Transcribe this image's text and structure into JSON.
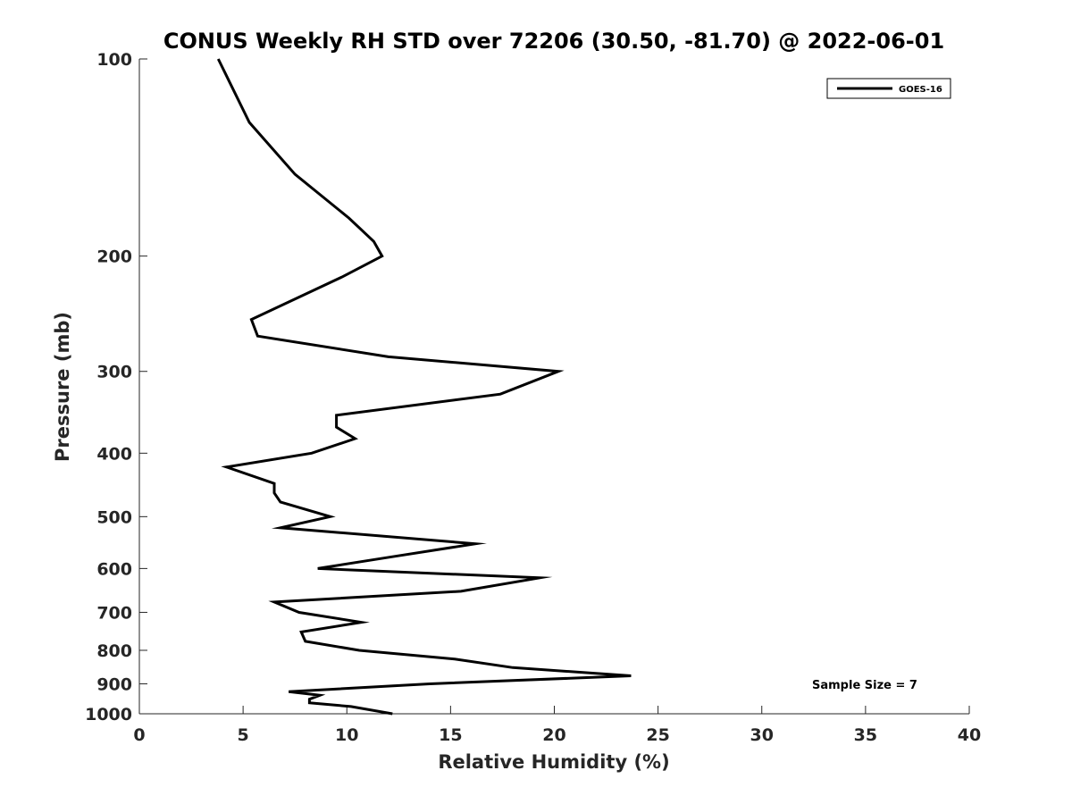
{
  "chart_data": {
    "type": "line",
    "title": "CONUS Weekly RH STD over 72206 (30.50, -81.70) @ 2022-06-01",
    "xlabel": "Relative Humidity (%)",
    "ylabel": "Pressure (mb)",
    "xlim": [
      0,
      40
    ],
    "ylim": [
      100,
      1000
    ],
    "y_scale": "log",
    "y_direction": "reversed",
    "x_ticks": [
      0,
      5,
      10,
      15,
      20,
      25,
      30,
      35,
      40
    ],
    "y_ticks": [
      100,
      200,
      300,
      400,
      500,
      600,
      700,
      800,
      900,
      1000
    ],
    "legend": {
      "position": "top-right",
      "entries": [
        "GOES-16"
      ]
    },
    "annotation": "Sample Size = 7",
    "series": [
      {
        "name": "GOES-16",
        "color": "#000000",
        "points": [
          [
            3.8,
            100
          ],
          [
            5.3,
            125
          ],
          [
            7.5,
            150
          ],
          [
            10.1,
            175
          ],
          [
            11.3,
            190
          ],
          [
            11.7,
            200
          ],
          [
            9.8,
            215
          ],
          [
            5.4,
            250
          ],
          [
            5.7,
            265
          ],
          [
            12.0,
            285
          ],
          [
            20.2,
            300
          ],
          [
            17.4,
            325
          ],
          [
            9.5,
            350
          ],
          [
            9.5,
            365
          ],
          [
            10.4,
            380
          ],
          [
            8.3,
            400
          ],
          [
            4.2,
            420
          ],
          [
            6.5,
            445
          ],
          [
            6.5,
            460
          ],
          [
            6.8,
            475
          ],
          [
            9.2,
            500
          ],
          [
            6.8,
            520
          ],
          [
            16.2,
            550
          ],
          [
            12.3,
            575
          ],
          [
            8.6,
            600
          ],
          [
            19.3,
            620
          ],
          [
            15.5,
            650
          ],
          [
            6.5,
            675
          ],
          [
            7.7,
            700
          ],
          [
            10.7,
            725
          ],
          [
            7.8,
            750
          ],
          [
            8.0,
            775
          ],
          [
            10.6,
            800
          ],
          [
            15.2,
            825
          ],
          [
            18.0,
            850
          ],
          [
            23.7,
            875
          ],
          [
            14.0,
            900
          ],
          [
            7.2,
            925
          ],
          [
            8.7,
            937
          ],
          [
            8.2,
            950
          ],
          [
            8.2,
            962
          ],
          [
            10.2,
            975
          ],
          [
            12.2,
            1000
          ]
        ]
      }
    ]
  }
}
